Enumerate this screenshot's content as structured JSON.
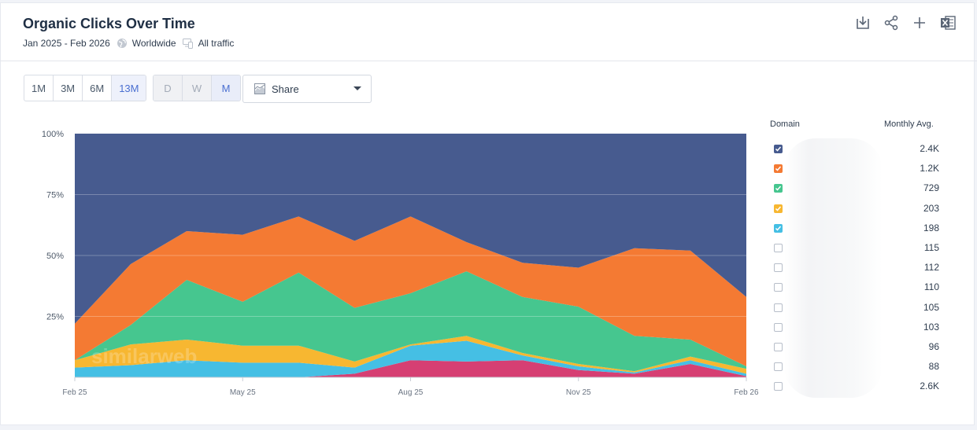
{
  "header": {
    "title": "Organic Clicks Over Time",
    "date_range": "Jan 2025 - Feb 2026",
    "region": "Worldwide",
    "traffic": "All traffic",
    "actions": [
      "download-icon",
      "share-icon",
      "plus-icon",
      "excel-icon"
    ]
  },
  "controls": {
    "ranges": [
      {
        "label": "1M",
        "active": false
      },
      {
        "label": "3M",
        "active": false
      },
      {
        "label": "6M",
        "active": false
      },
      {
        "label": "13M",
        "active": true
      }
    ],
    "granularity": [
      {
        "label": "D",
        "active": false
      },
      {
        "label": "W",
        "active": false
      },
      {
        "label": "M",
        "active": true
      }
    ],
    "metric_select": "Share"
  },
  "watermark": "similarweb",
  "legend": {
    "domain_header": "Domain",
    "avg_header": "Monthly Avg.",
    "rows": [
      {
        "value": "2.4K",
        "checked": true,
        "color": "#475b8f"
      },
      {
        "value": "1.2K",
        "checked": true,
        "color": "#f47a33"
      },
      {
        "value": "729",
        "checked": true,
        "color": "#46c68f"
      },
      {
        "value": "203",
        "checked": true,
        "color": "#f7b731"
      },
      {
        "value": "198",
        "checked": true,
        "color": "#45bfe4"
      },
      {
        "value": "115",
        "checked": false,
        "color": "#d63f73"
      },
      {
        "value": "112",
        "checked": false
      },
      {
        "value": "110",
        "checked": false
      },
      {
        "value": "105",
        "checked": false
      },
      {
        "value": "103",
        "checked": false
      },
      {
        "value": "96",
        "checked": false
      },
      {
        "value": "88",
        "checked": false
      },
      {
        "value": "2.6K",
        "checked": false
      }
    ]
  },
  "chart_data": {
    "type": "area",
    "stacked": true,
    "normalized": true,
    "x": [
      "2025-02",
      "2025-03",
      "2025-04",
      "2025-05",
      "2025-06",
      "2025-07",
      "2025-08",
      "2025-09",
      "2025-10",
      "2025-11",
      "2025-12",
      "2026-01",
      "2026-02"
    ],
    "x_tick_labels": [
      "Feb 25",
      "May 25",
      "Aug 25",
      "Nov 25",
      "Feb 26"
    ],
    "x_tick_index": [
      0,
      3,
      6,
      9,
      12
    ],
    "y_ticks": [
      "100%",
      "75%",
      "50%",
      "25%"
    ],
    "ylim": [
      0,
      100
    ],
    "grid": true,
    "series": [
      {
        "color": "#d63f73",
        "values": [
          0,
          0,
          0,
          0,
          0,
          1.5,
          7,
          6.5,
          7,
          3,
          1.5,
          5.5,
          0.5
        ]
      },
      {
        "color": "#45bfe4",
        "values": [
          4,
          5,
          7,
          6,
          6,
          2.5,
          6,
          8.5,
          2,
          1.5,
          0.5,
          1.5,
          1
        ]
      },
      {
        "color": "#f7b731",
        "values": [
          3,
          8.5,
          8.5,
          7,
          7,
          2.5,
          0.5,
          2,
          1,
          1,
          0.5,
          1.5,
          2
        ]
      },
      {
        "color": "#46c68f",
        "values": [
          0,
          8,
          24.5,
          18,
          30,
          22,
          21,
          26.5,
          23,
          23.5,
          14.5,
          7,
          1
        ]
      },
      {
        "color": "#f47a33",
        "values": [
          15,
          25,
          20,
          27.5,
          23,
          27.5,
          31.5,
          12,
          14,
          16,
          36,
          36.5,
          28.5
        ]
      },
      {
        "color": "#475b8f",
        "values": [
          78,
          53.5,
          40,
          41.5,
          34,
          44,
          34,
          44.5,
          53,
          55,
          47,
          48,
          67
        ]
      }
    ]
  }
}
